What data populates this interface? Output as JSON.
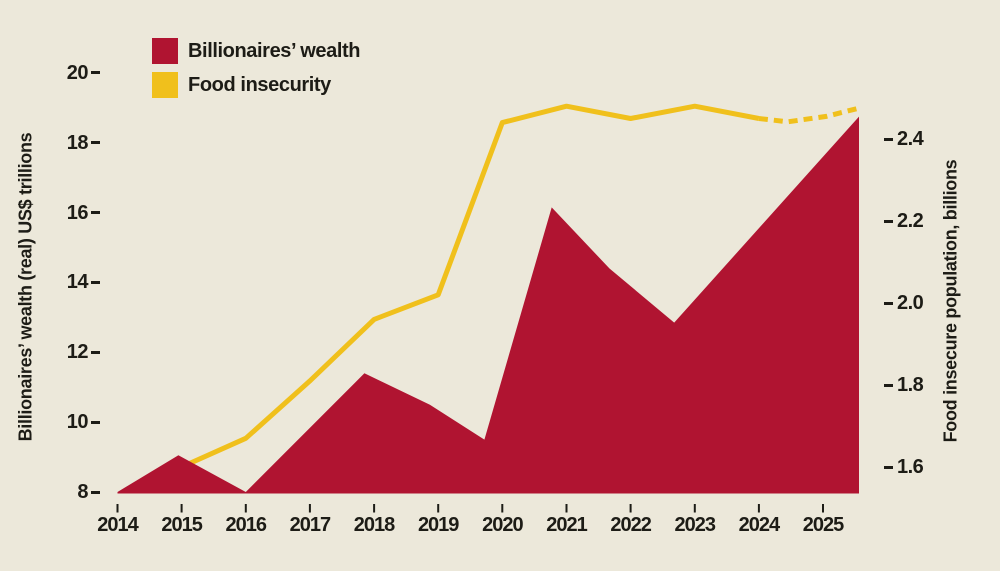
{
  "colors": {
    "background": "#ece8da",
    "text": "#1d1c16",
    "wealth_red": "#b01431",
    "insecurity_yellow": "#f0c01c"
  },
  "legend": [
    {
      "label": "Billionaires’ wealth",
      "color": "#b01431"
    },
    {
      "label": "Food insecurity",
      "color": "#f0c01c"
    }
  ],
  "chart_data": {
    "type": "combo-area-line",
    "title": "",
    "grid": false,
    "legend_position": "top-left",
    "x_axis": {
      "ticks": [
        2014,
        2015,
        2016,
        2017,
        2018,
        2019,
        2020,
        2021,
        2022,
        2023,
        2024,
        2025
      ],
      "range": [
        2014,
        2025.6
      ]
    },
    "left_axis": {
      "title": "Billionaires’ wealth (real) US$ trillions",
      "ticks": [
        "8",
        "10",
        "12",
        "14",
        "16",
        "18",
        "20"
      ],
      "range": [
        8,
        20
      ]
    },
    "right_axis": {
      "title": "Food insecure population, billions",
      "ticks": [
        "1.6",
        "1.8",
        "2.0",
        "2.2",
        "2.4"
      ],
      "range": [
        1.54,
        2.56
      ]
    },
    "series": [
      {
        "name": "Billionaires’ wealth",
        "type": "area",
        "axis": "left",
        "color": "#b01431",
        "baseline": 8,
        "points": [
          [
            2014.0,
            8.0
          ],
          [
            2014.95,
            9.05
          ],
          [
            2016.0,
            8.0
          ],
          [
            2017.85,
            11.4
          ],
          [
            2018.87,
            10.5
          ],
          [
            2019.72,
            9.5
          ],
          [
            2020.77,
            16.15
          ],
          [
            2021.67,
            14.4
          ],
          [
            2022.68,
            12.85
          ],
          [
            2025.56,
            18.75
          ]
        ]
      },
      {
        "name": "Food insecurity",
        "type": "line",
        "axis": "right",
        "color": "#f0c01c",
        "points": [
          [
            2015,
            1.6
          ],
          [
            2016,
            1.67
          ],
          [
            2017,
            1.81
          ],
          [
            2018,
            1.96
          ],
          [
            2019,
            2.02
          ],
          [
            2020,
            2.44
          ],
          [
            2021,
            2.48
          ],
          [
            2022,
            2.45
          ],
          [
            2023,
            2.48
          ],
          [
            2024,
            2.45
          ]
        ],
        "projected_points": [
          [
            2024.0,
            2.45
          ],
          [
            2024.45,
            2.442
          ],
          [
            2025.05,
            2.455
          ],
          [
            2025.55,
            2.475
          ]
        ],
        "projected_style": "dashed"
      }
    ]
  }
}
